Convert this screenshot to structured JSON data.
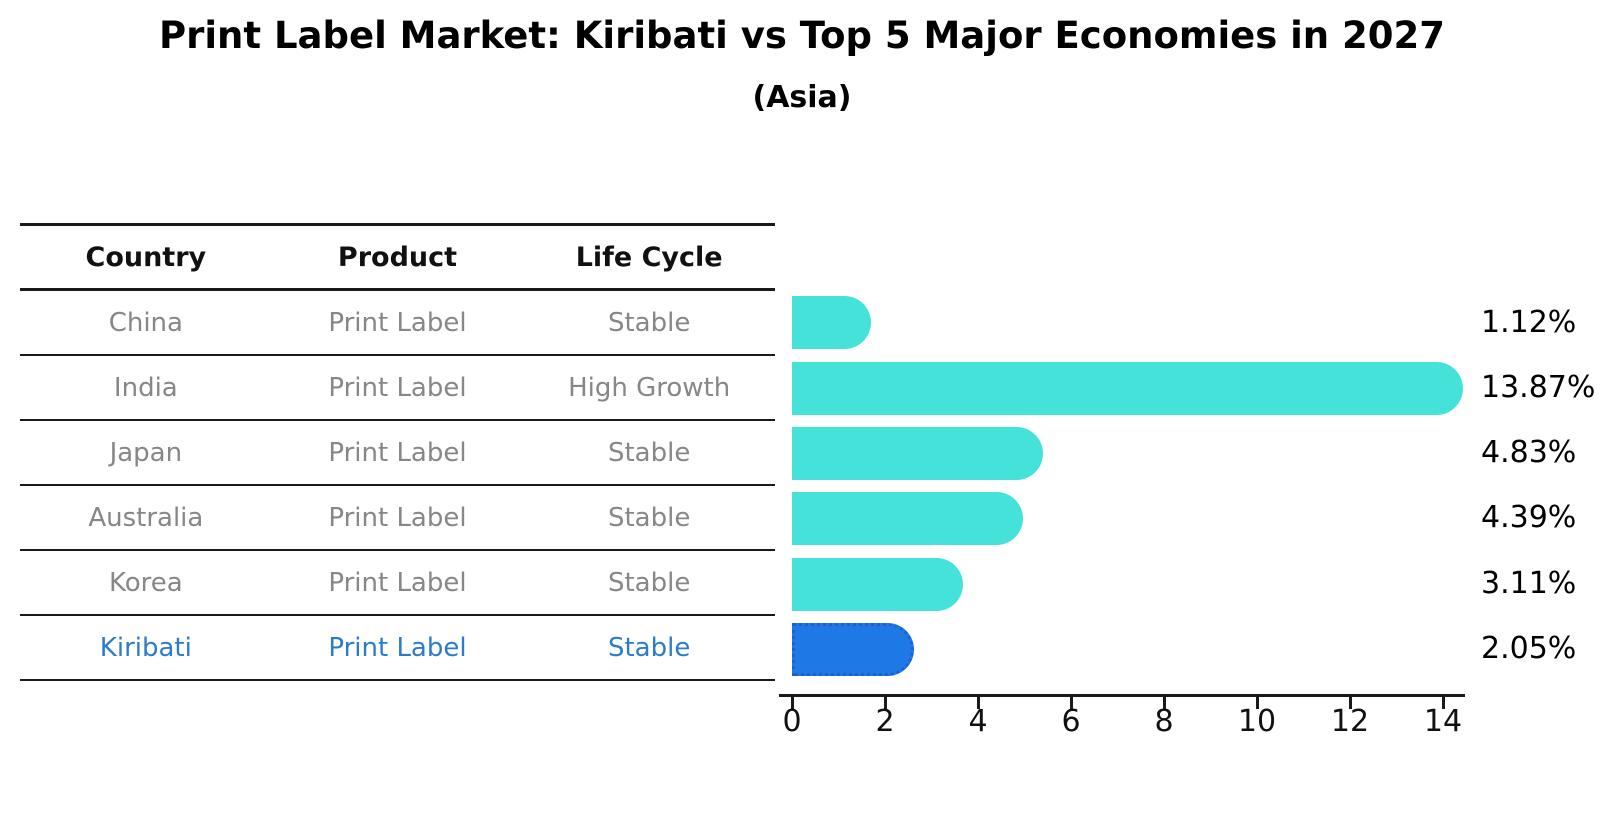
{
  "title": "Print Label Market: Kiribati vs Top 5 Major Economies in 2027",
  "subtitle": "(Asia)",
  "table": {
    "headers": [
      "Country",
      "Product",
      "Life Cycle"
    ],
    "rows": [
      {
        "country": "China",
        "product": "Print Label",
        "life_cycle": "Stable",
        "highlight": false
      },
      {
        "country": "India",
        "product": "Print Label",
        "life_cycle": "High Growth",
        "highlight": false
      },
      {
        "country": "Japan",
        "product": "Print Label",
        "life_cycle": "Stable",
        "highlight": false
      },
      {
        "country": "Australia",
        "product": "Print Label",
        "life_cycle": "Stable",
        "highlight": false
      },
      {
        "country": "Korea",
        "product": "Print Label",
        "life_cycle": "Stable",
        "highlight": false
      },
      {
        "country": "Kiribati",
        "product": "Print Label",
        "life_cycle": "Stable",
        "highlight": true
      }
    ]
  },
  "chart_data": {
    "type": "bar",
    "orientation": "horizontal",
    "title": "Print Label Market: Kiribati vs Top 5 Major Economies in 2027",
    "subtitle": "(Asia)",
    "categories": [
      "China",
      "India",
      "Japan",
      "Australia",
      "Korea",
      "Kiribati"
    ],
    "values": [
      1.12,
      13.87,
      4.83,
      4.39,
      3.11,
      2.05
    ],
    "value_labels": [
      "1.12%",
      "13.87%",
      "4.83%",
      "4.39%",
      "3.11%",
      "2.05%"
    ],
    "x_ticks": [
      "0",
      "2",
      "4",
      "6",
      "8",
      "10",
      "12",
      "14"
    ],
    "x_tick_values": [
      0,
      2,
      4,
      6,
      8,
      10,
      12,
      14
    ],
    "xlim": [
      0,
      14.5
    ],
    "grid": false,
    "legend_position": "none",
    "highlight_category": "Kiribati"
  },
  "colors": {
    "bar_default": "#45e2d9",
    "bar_highlight": "#1e79e6",
    "bar_highlight_border": "#1a63cc",
    "highlight_text": "#2d7ccc",
    "cell_text": "#878787",
    "header_text": "#111111",
    "axis": "#1a1a1a"
  }
}
